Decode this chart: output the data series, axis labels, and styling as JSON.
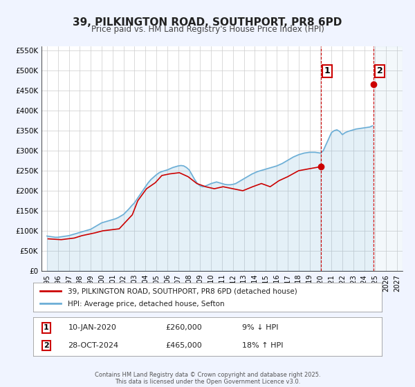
{
  "title": "39, PILKINGTON ROAD, SOUTHPORT, PR8 6PD",
  "subtitle": "Price paid vs. HM Land Registry's House Price Index (HPI)",
  "background_color": "#f0f4ff",
  "plot_bg_color": "#ffffff",
  "grid_color": "#cccccc",
  "ylim": [
    0,
    560000
  ],
  "xlim": [
    1994.5,
    2027.5
  ],
  "yticks": [
    0,
    50000,
    100000,
    150000,
    200000,
    250000,
    300000,
    350000,
    400000,
    450000,
    500000,
    550000
  ],
  "ytick_labels": [
    "£0",
    "£50K",
    "£100K",
    "£150K",
    "£200K",
    "£250K",
    "£300K",
    "£350K",
    "£400K",
    "£450K",
    "£500K",
    "£550K"
  ],
  "xticks": [
    1995,
    1996,
    1997,
    1998,
    1999,
    2000,
    2001,
    2002,
    2003,
    2004,
    2005,
    2006,
    2007,
    2008,
    2009,
    2010,
    2011,
    2012,
    2013,
    2014,
    2015,
    2016,
    2017,
    2018,
    2019,
    2020,
    2021,
    2022,
    2023,
    2024,
    2025,
    2026,
    2027
  ],
  "hpi_color": "#6baed6",
  "price_color": "#cc0000",
  "marker_color_1": "#cc0000",
  "marker_color_2": "#cc0000",
  "vline_color": "#cc0000",
  "vline_style": "--",
  "point1_x": 2020.03,
  "point1_y": 260000,
  "point2_x": 2024.83,
  "point2_y": 465000,
  "annotation1_label": "1",
  "annotation2_label": "2",
  "legend_price_label": "39, PILKINGTON ROAD, SOUTHPORT, PR8 6PD (detached house)",
  "legend_hpi_label": "HPI: Average price, detached house, Sefton",
  "table_row1": [
    "1",
    "10-JAN-2020",
    "£260,000",
    "9% ↓ HPI"
  ],
  "table_row2": [
    "2",
    "28-OCT-2024",
    "£465,000",
    "18% ↑ HPI"
  ],
  "footnote": "Contains HM Land Registry data © Crown copyright and database right 2025.\nThis data is licensed under the Open Government Licence v3.0.",
  "hpi_x": [
    1995,
    1995.25,
    1995.5,
    1995.75,
    1996,
    1996.25,
    1996.5,
    1996.75,
    1997,
    1997.25,
    1997.5,
    1997.75,
    1998,
    1998.25,
    1998.5,
    1998.75,
    1999,
    1999.25,
    1999.5,
    1999.75,
    2000,
    2000.25,
    2000.5,
    2000.75,
    2001,
    2001.25,
    2001.5,
    2001.75,
    2002,
    2002.25,
    2002.5,
    2002.75,
    2003,
    2003.25,
    2003.5,
    2003.75,
    2004,
    2004.25,
    2004.5,
    2004.75,
    2005,
    2005.25,
    2005.5,
    2005.75,
    2006,
    2006.25,
    2006.5,
    2006.75,
    2007,
    2007.25,
    2007.5,
    2007.75,
    2008,
    2008.25,
    2008.5,
    2008.75,
    2009,
    2009.25,
    2009.5,
    2009.75,
    2010,
    2010.25,
    2010.5,
    2010.75,
    2011,
    2011.25,
    2011.5,
    2011.75,
    2012,
    2012.25,
    2012.5,
    2012.75,
    2013,
    2013.25,
    2013.5,
    2013.75,
    2014,
    2014.25,
    2014.5,
    2014.75,
    2015,
    2015.25,
    2015.5,
    2015.75,
    2016,
    2016.25,
    2016.5,
    2016.75,
    2017,
    2017.25,
    2017.5,
    2017.75,
    2018,
    2018.25,
    2018.5,
    2018.75,
    2019,
    2019.25,
    2019.5,
    2019.75,
    2020,
    2020.25,
    2020.5,
    2020.75,
    2021,
    2021.25,
    2021.5,
    2021.75,
    2022,
    2022.25,
    2022.5,
    2022.75,
    2023,
    2023.25,
    2023.5,
    2023.75,
    2024,
    2024.25,
    2024.5,
    2024.75
  ],
  "hpi_y": [
    87000,
    86000,
    85000,
    84000,
    84000,
    85000,
    86000,
    87000,
    88000,
    90000,
    92000,
    94000,
    96000,
    98000,
    100000,
    102000,
    104000,
    108000,
    112000,
    116000,
    120000,
    122000,
    124000,
    126000,
    128000,
    130000,
    133000,
    137000,
    141000,
    148000,
    155000,
    163000,
    170000,
    180000,
    190000,
    200000,
    210000,
    220000,
    228000,
    234000,
    240000,
    245000,
    248000,
    250000,
    252000,
    255000,
    258000,
    260000,
    262000,
    263000,
    262000,
    258000,
    252000,
    240000,
    228000,
    218000,
    212000,
    210000,
    212000,
    215000,
    218000,
    220000,
    222000,
    220000,
    218000,
    216000,
    215000,
    215000,
    216000,
    218000,
    222000,
    226000,
    230000,
    234000,
    238000,
    242000,
    245000,
    248000,
    250000,
    252000,
    254000,
    256000,
    258000,
    260000,
    262000,
    265000,
    268000,
    272000,
    276000,
    280000,
    284000,
    287000,
    290000,
    292000,
    294000,
    295000,
    296000,
    296000,
    296000,
    295000,
    294000,
    300000,
    315000,
    330000,
    345000,
    350000,
    352000,
    348000,
    340000,
    345000,
    348000,
    350000,
    352000,
    354000,
    355000,
    356000,
    357000,
    358000,
    359000,
    362000
  ],
  "price_x": [
    1995.1,
    1996.3,
    1997.5,
    1998.2,
    1999.4,
    2000.1,
    2001.6,
    2002.8,
    2003.3,
    2004.1,
    2004.9,
    2005.5,
    2006.2,
    2007.1,
    2007.9,
    2008.7,
    2009.5,
    2010.3,
    2011.1,
    2012.0,
    2012.9,
    2013.8,
    2014.6,
    2015.4,
    2016.2,
    2017.0,
    2018.0,
    2019.0,
    2020.03,
    2024.83
  ],
  "price_y": [
    80000,
    78000,
    82000,
    88000,
    95000,
    100000,
    105000,
    140000,
    175000,
    205000,
    220000,
    238000,
    242000,
    245000,
    235000,
    218000,
    210000,
    205000,
    210000,
    205000,
    200000,
    210000,
    218000,
    210000,
    225000,
    235000,
    250000,
    255000,
    260000,
    465000
  ]
}
